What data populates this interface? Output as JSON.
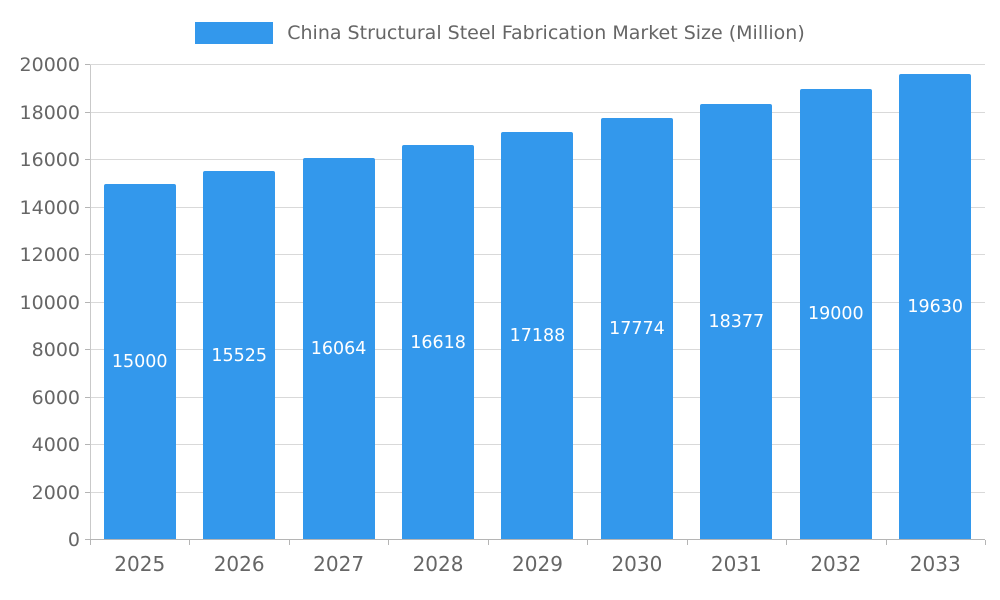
{
  "chart_data": {
    "type": "bar",
    "title": "China Structural Steel Fabrication Market Size (Million)",
    "categories": [
      "2025",
      "2026",
      "2027",
      "2028",
      "2029",
      "2030",
      "2031",
      "2032",
      "2033"
    ],
    "values": [
      15000,
      15525,
      16064,
      16618,
      17188,
      17774,
      18377,
      19000,
      19630
    ],
    "xlabel": "",
    "ylabel": "",
    "ylim": [
      0,
      20000
    ],
    "ytick_step": 2000,
    "grid": "horizontal",
    "legend_position": "top-center",
    "bar_color": "#3398EC",
    "bar_label_color": "#ffffff",
    "axis_text_color": "#666666"
  }
}
